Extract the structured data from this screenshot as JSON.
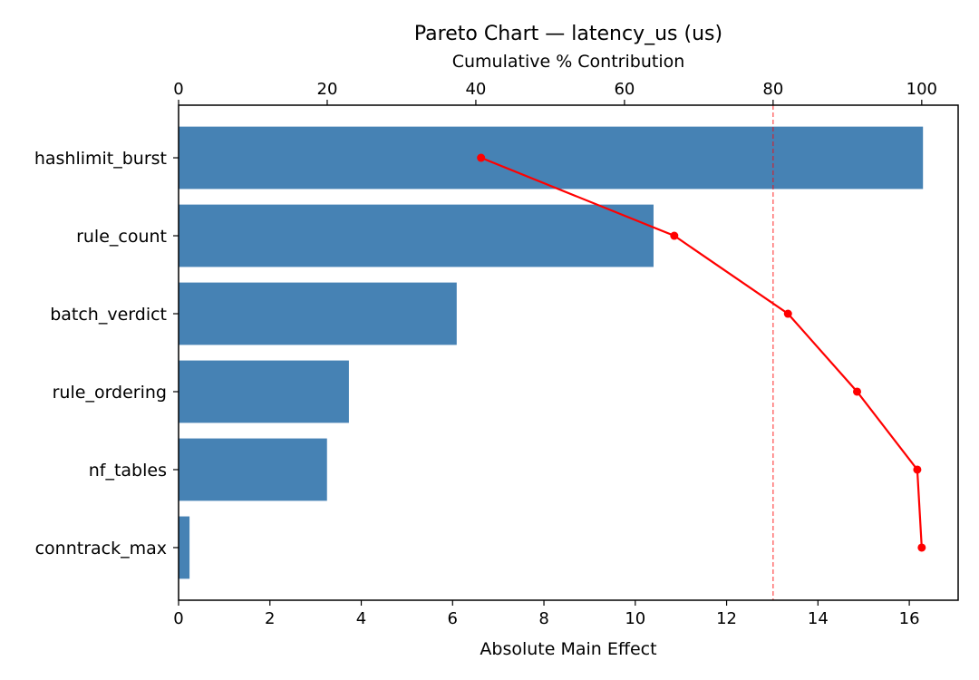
{
  "chart_data": {
    "type": "bar",
    "orientation": "horizontal",
    "title": "Pareto Chart — latency_us (us)",
    "xlabel": "Absolute Main Effect",
    "x2label": "Cumulative % Contribution",
    "ylabel": "",
    "categories": [
      "hashlimit_burst",
      "rule_count",
      "batch_verdict",
      "rule_ordering",
      "nf_tables",
      "conntrack_max"
    ],
    "series": [
      {
        "name": "Absolute Main Effect",
        "type": "bar",
        "axis": "bottom",
        "color": "#4682b4",
        "values": [
          16.3,
          10.4,
          6.09,
          3.73,
          3.25,
          0.24
        ]
      },
      {
        "name": "Cumulative %",
        "type": "line",
        "axis": "top",
        "color": "#ff0000",
        "marker": "circle",
        "values": [
          40.7,
          66.7,
          82.0,
          91.3,
          99.4,
          100.0
        ]
      }
    ],
    "xlim": [
      0,
      17.07
    ],
    "x2lim": [
      0,
      104.9
    ],
    "xticks": [
      0,
      2,
      4,
      6,
      8,
      10,
      12,
      14,
      16
    ],
    "x2ticks": [
      0,
      20,
      40,
      60,
      80,
      100
    ],
    "threshold_line": {
      "axis": "top",
      "value": 80,
      "style": "dashed",
      "color": "#ff0000"
    },
    "grid": false,
    "legend": null
  }
}
